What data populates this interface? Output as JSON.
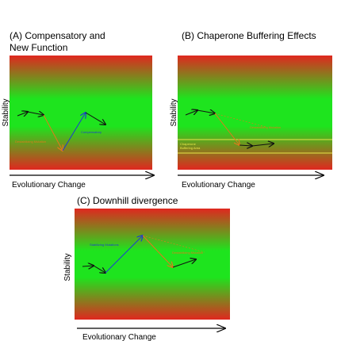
{
  "colors": {
    "unstable": "#e0271f",
    "stable": "#1ee41e",
    "destabilizing_arrow": "#e07a1c",
    "stabilizing_arrow": "#1c3bd0",
    "neutral_arrow": "#111111",
    "buffer_line": "#e6e84a"
  },
  "panels": {
    "a": {
      "title_line1": "(A) Compensatory and",
      "title_line2": "New Function",
      "y_label": "Stability",
      "x_label": "Evolutionary Change",
      "notes": {
        "destabilizing": "Destabilizing Mutation",
        "compensatory": "Compensatory"
      }
    },
    "b": {
      "title": "(B) Chaperone Buffering Effects",
      "y_label": "Stability",
      "x_label": "Evolutionary Change",
      "notes": {
        "destabilizing": "Destabilizing Mutation",
        "buffer_line1": "Chaperone",
        "buffer_line2": "Buffering Area"
      }
    },
    "c": {
      "title": "(C) Downhill divergence",
      "y_label": "Stability",
      "x_label": "Evolutionary Change",
      "notes": {
        "stabilizing": "Stabilizing Mutations",
        "destabilizing": "Destabilizing Mutation"
      }
    }
  }
}
